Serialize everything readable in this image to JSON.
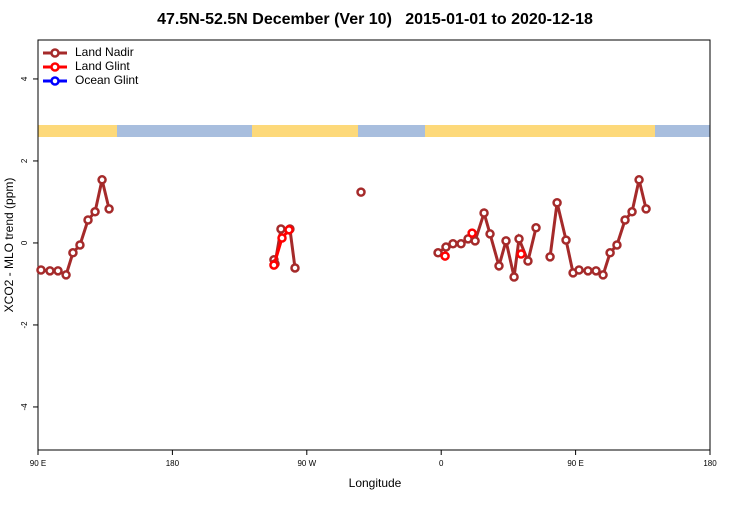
{
  "chart_data": {
    "type": "line",
    "title": "47.5N-52.5N December (Ver 10)   2015-01-01 to 2020-12-18",
    "xlabel": "Longitude",
    "ylabel": "XCO2 - MLO trend (ppm)",
    "xlim": [
      90,
      540
    ],
    "ylim": [
      -5.05,
      4.95
    ],
    "xticks": [
      {
        "value": 90,
        "label": "90 E"
      },
      180,
      {
        "value": 270,
        "label": "90 W"
      },
      {
        "value": 360,
        "label": "0"
      },
      {
        "value": 450,
        "label": "90 E"
      },
      {
        "value": 540,
        "label": "180"
      }
    ],
    "yticks": [
      -4,
      -2,
      0,
      2,
      4
    ],
    "legend": "upper left",
    "series": [
      {
        "name": "Land Nadir",
        "color": "#a52a2a",
        "x": [
          92.0,
          98.0,
          103.4,
          108.8,
          113.4,
          118.1,
          123.5,
          128.2,
          132.9,
          137.6,
          null,
          248.0,
          248.7,
          252.7,
          258.7,
          262.1,
          null,
          306.3,
          null,
          357.9,
          363.2,
          367.9,
          373.3,
          378.0,
          382.7,
          388.7,
          392.7,
          398.7,
          403.4,
          408.8,
          412.1,
          418.1,
          423.5,
          null,
          432.9,
          437.6,
          443.6,
          448.3,
          452.3,
          458.3,
          463.7,
          468.4,
          473.1,
          477.7,
          483.1,
          487.8,
          492.5,
          497.2
        ],
        "values": [
          -0.66,
          -0.68,
          -0.68,
          -0.78,
          -0.24,
          -0.05,
          0.56,
          0.76,
          1.54,
          0.83,
          null,
          -0.41,
          -0.51,
          0.34,
          0.34,
          -0.61,
          null,
          1.24,
          null,
          -0.24,
          -0.1,
          -0.02,
          -0.02,
          0.1,
          0.05,
          0.73,
          0.22,
          -0.56,
          0.05,
          -0.83,
          0.1,
          -0.44,
          0.37,
          null,
          -0.34,
          0.98,
          0.07,
          -0.73,
          -0.66,
          -0.68,
          -0.68,
          -0.78,
          -0.24,
          -0.05,
          0.56,
          0.76,
          1.54,
          0.83
        ]
      },
      {
        "name": "Land Glint",
        "color": "#ff0000",
        "x": [
          248.0,
          253.4,
          258.1,
          null,
          362.6,
          null,
          380.7,
          null,
          413.5
        ],
        "values": [
          -0.54,
          0.12,
          0.32,
          null,
          -0.32,
          null,
          0.24,
          null,
          -0.27
        ]
      },
      {
        "name": "Ocean Glint",
        "color": "#0000ff",
        "x": [],
        "values": []
      }
    ]
  }
}
